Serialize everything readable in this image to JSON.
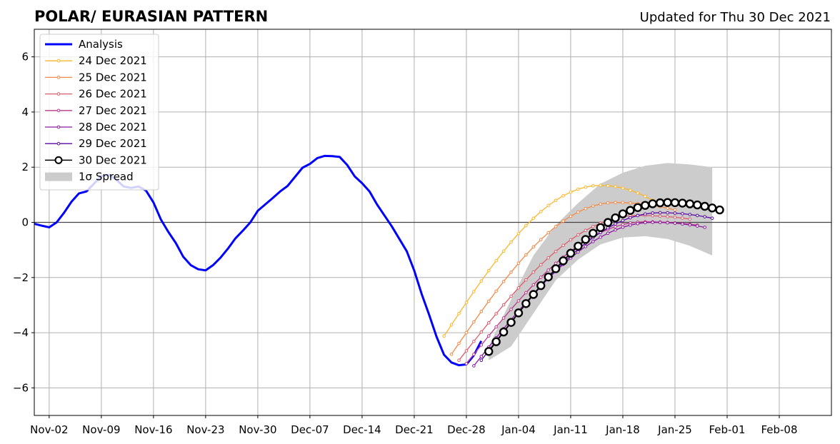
{
  "chart_data": {
    "type": "line",
    "title": "POLAR/ EURASIAN  PATTERN",
    "subtitle": "Updated for Thu 30 Dec 2021",
    "xlabel": "",
    "ylabel": "",
    "x_axis": {
      "unit": "date",
      "range": [
        "2021-10-31",
        "2022-02-15"
      ],
      "ticks": [
        {
          "date": "2021-11-02",
          "label": "Nov-02"
        },
        {
          "date": "2021-11-09",
          "label": "Nov-09"
        },
        {
          "date": "2021-11-16",
          "label": "Nov-16"
        },
        {
          "date": "2021-11-23",
          "label": "Nov-23"
        },
        {
          "date": "2021-11-30",
          "label": "Nov-30"
        },
        {
          "date": "2021-12-07",
          "label": "Dec-07"
        },
        {
          "date": "2021-12-14",
          "label": "Dec-14"
        },
        {
          "date": "2021-12-21",
          "label": "Dec-21"
        },
        {
          "date": "2021-12-28",
          "label": "Dec-28"
        },
        {
          "date": "2022-01-04",
          "label": "Jan-04"
        },
        {
          "date": "2022-01-11",
          "label": "Jan-11"
        },
        {
          "date": "2022-01-18",
          "label": "Jan-18"
        },
        {
          "date": "2022-01-25",
          "label": "Jan-25"
        },
        {
          "date": "2022-02-01",
          "label": "Feb-01"
        },
        {
          "date": "2022-02-08",
          "label": "Feb-08"
        }
      ]
    },
    "y_axis": {
      "range": [
        -7,
        7
      ],
      "ticks": [
        {
          "value": -6,
          "label": "−6"
        },
        {
          "value": -4,
          "label": "−4"
        },
        {
          "value": -2,
          "label": "−2"
        },
        {
          "value": 0,
          "label": "0"
        },
        {
          "value": 2,
          "label": "2"
        },
        {
          "value": 4,
          "label": "4"
        },
        {
          "value": 6,
          "label": "6"
        }
      ]
    },
    "grid": true,
    "zero_line": true,
    "legend_position": "top-left",
    "legend": [
      {
        "label": "Analysis",
        "kind": "line",
        "color": "#0000ff"
      },
      {
        "label": "24 Dec 2021",
        "kind": "marker-line",
        "color": "#fbb72b"
      },
      {
        "label": "25 Dec 2021",
        "kind": "marker-line",
        "color": "#f28a48"
      },
      {
        "label": "26 Dec 2021",
        "kind": "marker-line",
        "color": "#dc5e6c"
      },
      {
        "label": "27 Dec 2021",
        "kind": "marker-line",
        "color": "#bb3a8a"
      },
      {
        "label": "28 Dec 2021",
        "kind": "marker-line",
        "color": "#8e1aa0"
      },
      {
        "label": "29 Dec 2021",
        "kind": "marker-line",
        "color": "#5a0aa6"
      },
      {
        "label": "30 Dec 2021",
        "kind": "big-marker-line",
        "color": "#000000"
      },
      {
        "label": "1σ Spread",
        "kind": "patch",
        "color": "#cccccc"
      }
    ],
    "analysis": {
      "name": "Analysis",
      "color": "#0000ff",
      "points": [
        [
          "2021-10-31",
          -0.05
        ],
        [
          "2021-11-01",
          -0.12
        ],
        [
          "2021-11-02",
          -0.18
        ],
        [
          "2021-11-03",
          0.0
        ],
        [
          "2021-11-04",
          0.35
        ],
        [
          "2021-11-05",
          0.75
        ],
        [
          "2021-11-06",
          1.05
        ],
        [
          "2021-11-07",
          1.12
        ],
        [
          "2021-11-08",
          1.4
        ],
        [
          "2021-11-09",
          1.68
        ],
        [
          "2021-11-10",
          1.72
        ],
        [
          "2021-11-11",
          1.55
        ],
        [
          "2021-11-12",
          1.3
        ],
        [
          "2021-11-13",
          1.25
        ],
        [
          "2021-11-14",
          1.3
        ],
        [
          "2021-11-15",
          1.15
        ],
        [
          "2021-11-16",
          0.72
        ],
        [
          "2021-11-17",
          0.1
        ],
        [
          "2021-11-18",
          -0.35
        ],
        [
          "2021-11-19",
          -0.75
        ],
        [
          "2021-11-20",
          -1.25
        ],
        [
          "2021-11-21",
          -1.55
        ],
        [
          "2021-11-22",
          -1.7
        ],
        [
          "2021-11-23",
          -1.74
        ],
        [
          "2021-11-24",
          -1.55
        ],
        [
          "2021-11-25",
          -1.28
        ],
        [
          "2021-11-26",
          -0.95
        ],
        [
          "2021-11-27",
          -0.58
        ],
        [
          "2021-11-28",
          -0.3
        ],
        [
          "2021-11-29",
          0.0
        ],
        [
          "2021-11-30",
          0.42
        ],
        [
          "2021-12-01",
          0.65
        ],
        [
          "2021-12-02",
          0.88
        ],
        [
          "2021-12-03",
          1.12
        ],
        [
          "2021-12-04",
          1.32
        ],
        [
          "2021-12-05",
          1.65
        ],
        [
          "2021-12-06",
          1.98
        ],
        [
          "2021-12-07",
          2.12
        ],
        [
          "2021-12-08",
          2.33
        ],
        [
          "2021-12-09",
          2.41
        ],
        [
          "2021-12-10",
          2.4
        ],
        [
          "2021-12-11",
          2.37
        ],
        [
          "2021-12-12",
          2.08
        ],
        [
          "2021-12-13",
          1.67
        ],
        [
          "2021-12-14",
          1.42
        ],
        [
          "2021-12-15",
          1.12
        ],
        [
          "2021-12-16",
          0.65
        ],
        [
          "2021-12-17",
          0.25
        ],
        [
          "2021-12-18",
          -0.15
        ],
        [
          "2021-12-19",
          -0.6
        ],
        [
          "2021-12-20",
          -1.05
        ],
        [
          "2021-12-21",
          -1.75
        ],
        [
          "2021-12-22",
          -2.6
        ],
        [
          "2021-12-23",
          -3.35
        ],
        [
          "2021-12-24",
          -4.15
        ],
        [
          "2021-12-25",
          -4.8
        ],
        [
          "2021-12-26",
          -5.08
        ],
        [
          "2021-12-27",
          -5.18
        ],
        [
          "2021-12-28",
          -5.15
        ],
        [
          "2021-12-29",
          -4.82
        ],
        [
          "2021-12-30",
          -4.3
        ]
      ]
    },
    "forecasts": [
      {
        "name": "24 Dec 2021",
        "color": "#fbb72b",
        "start": "2021-12-25",
        "length_days": 28,
        "start_value": -4.12,
        "peak_value": 1.34,
        "peak_day": 21,
        "end_value": 0.8
      },
      {
        "name": "25 Dec 2021",
        "color": "#f28a48",
        "start": "2021-12-26",
        "length_days": 30,
        "start_value": -4.78,
        "peak_value": 0.72,
        "peak_day": 22,
        "end_value": 0.45
      },
      {
        "name": "26 Dec 2021",
        "color": "#dc5e6c",
        "start": "2021-12-27",
        "length_days": 31,
        "start_value": -5.0,
        "peak_value": 0.25,
        "peak_day": 24,
        "end_value": 0.12
      },
      {
        "name": "27 Dec 2021",
        "color": "#bb3a8a",
        "start": "2021-12-28",
        "length_days": 31,
        "start_value": -5.12,
        "peak_value": 0.02,
        "peak_day": 24,
        "end_value": -0.1
      },
      {
        "name": "28 Dec 2021",
        "color": "#8e1aa0",
        "start": "2021-12-29",
        "length_days": 31,
        "start_value": -5.2,
        "peak_value": 0.0,
        "peak_day": 24,
        "end_value": -0.18
      },
      {
        "name": "29 Dec 2021",
        "color": "#5a0aa6",
        "start": "2021-12-30",
        "length_days": 31,
        "start_value": -5.0,
        "peak_value": 0.35,
        "peak_day": 24,
        "end_value": 0.15
      },
      {
        "name": "30 Dec 2021",
        "color": "#000000",
        "start": "2021-12-31",
        "length_days": 31,
        "start_value": -4.68,
        "peak_value": 0.72,
        "peak_day": 24,
        "end_value": 0.45
      }
    ],
    "spread": {
      "name": "1σ Spread",
      "color": "#cccccc",
      "start": "2021-12-31",
      "points": [
        {
          "offset": 0,
          "low": -5.0,
          "high": -4.5
        },
        {
          "offset": 3,
          "low": -4.5,
          "high": -2.8
        },
        {
          "offset": 6,
          "low": -3.3,
          "high": -1.2
        },
        {
          "offset": 9,
          "low": -2.1,
          "high": -0.1
        },
        {
          "offset": 12,
          "low": -1.35,
          "high": 0.7
        },
        {
          "offset": 15,
          "low": -0.8,
          "high": 1.4
        },
        {
          "offset": 18,
          "low": -0.55,
          "high": 1.8
        },
        {
          "offset": 21,
          "low": -0.5,
          "high": 2.05
        },
        {
          "offset": 24,
          "low": -0.6,
          "high": 2.15
        },
        {
          "offset": 27,
          "low": -0.85,
          "high": 2.1
        },
        {
          "offset": 30,
          "low": -1.2,
          "high": 2.0
        }
      ]
    }
  }
}
